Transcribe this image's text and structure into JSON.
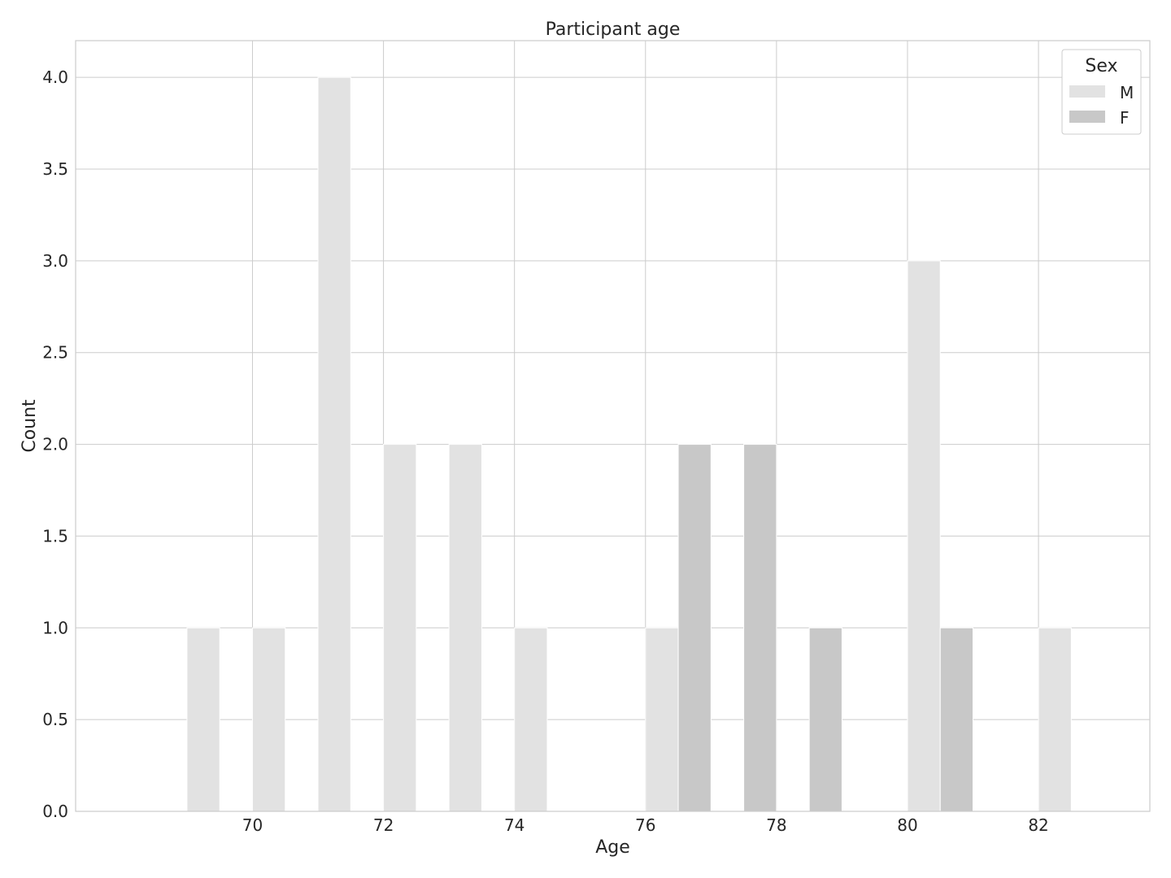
{
  "chart_data": {
    "type": "bar",
    "title": "Participant age",
    "xlabel": "Age",
    "ylabel": "Count",
    "xlim": [
      67.3,
      83.7
    ],
    "ylim": [
      0,
      4.2
    ],
    "x_ticks": [
      70,
      72,
      74,
      76,
      78,
      80,
      82
    ],
    "y_ticks": [
      0.0,
      0.5,
      1.0,
      1.5,
      2.0,
      2.5,
      3.0,
      3.5,
      4.0
    ],
    "grid": true,
    "legend": {
      "title": "Sex",
      "placement": "top-right"
    },
    "bin_width": 1,
    "series": [
      {
        "name": "M",
        "color": "#e2e2e2",
        "bars": [
          {
            "x": 69,
            "value": 1
          },
          {
            "x": 70,
            "value": 1
          },
          {
            "x": 71,
            "value": 4
          },
          {
            "x": 72,
            "value": 2
          },
          {
            "x": 73,
            "value": 2
          },
          {
            "x": 74,
            "value": 1
          },
          {
            "x": 76,
            "value": 1
          },
          {
            "x": 80,
            "value": 3
          },
          {
            "x": 82,
            "value": 1
          }
        ]
      },
      {
        "name": "F",
        "color": "#c8c8c8",
        "bars": [
          {
            "x": 76,
            "value": 2
          },
          {
            "x": 77,
            "value": 2
          },
          {
            "x": 78,
            "value": 1
          },
          {
            "x": 80,
            "value": 1
          }
        ]
      }
    ]
  }
}
